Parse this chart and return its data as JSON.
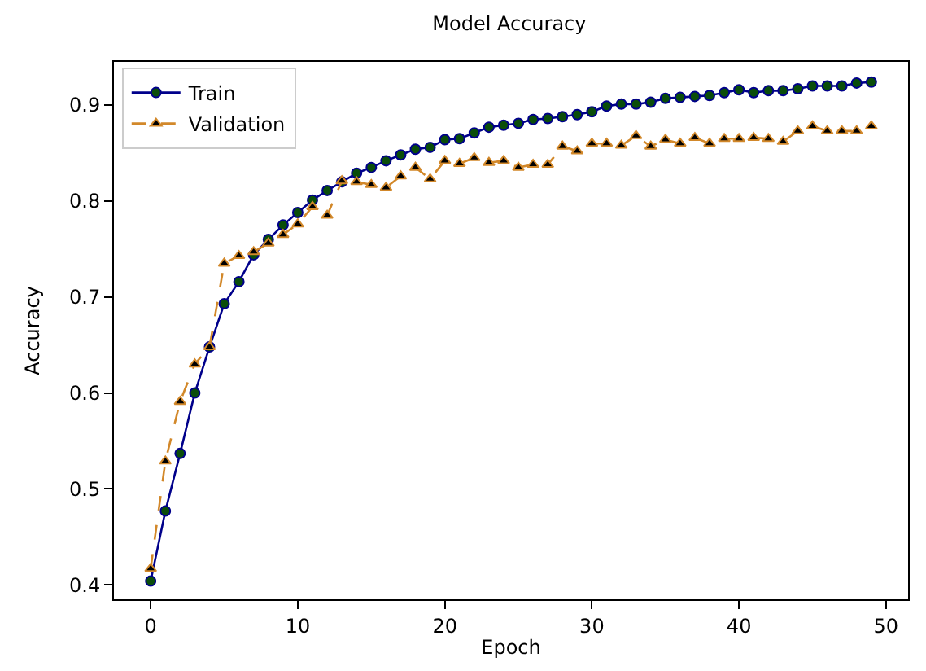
{
  "chart_data": {
    "type": "line",
    "title": "Model Accuracy",
    "xlabel": "Epoch",
    "ylabel": "Accuracy",
    "x": [
      0,
      1,
      2,
      3,
      4,
      5,
      6,
      7,
      8,
      9,
      10,
      11,
      12,
      13,
      14,
      15,
      16,
      17,
      18,
      19,
      20,
      21,
      22,
      23,
      24,
      25,
      26,
      27,
      28,
      29,
      30,
      31,
      32,
      33,
      34,
      35,
      36,
      37,
      38,
      39,
      40,
      41,
      42,
      43,
      44,
      45,
      46,
      47,
      48,
      49
    ],
    "series": [
      {
        "name": "Train",
        "color": "#00008b",
        "marker": "circle",
        "line_style": "solid",
        "values": [
          0.404,
          0.477,
          0.537,
          0.6,
          0.648,
          0.693,
          0.716,
          0.744,
          0.76,
          0.775,
          0.788,
          0.801,
          0.811,
          0.82,
          0.829,
          0.835,
          0.842,
          0.848,
          0.854,
          0.856,
          0.864,
          0.865,
          0.871,
          0.877,
          0.879,
          0.881,
          0.885,
          0.886,
          0.888,
          0.89,
          0.893,
          0.899,
          0.901,
          0.901,
          0.903,
          0.907,
          0.908,
          0.909,
          0.91,
          0.913,
          0.916,
          0.913,
          0.915,
          0.915,
          0.917,
          0.92,
          0.92,
          0.92,
          0.923,
          0.924
        ]
      },
      {
        "name": "Validation",
        "color": "#d2882a",
        "marker": "triangle",
        "line_style": "dashed",
        "values": [
          0.417,
          0.529,
          0.591,
          0.63,
          0.648,
          0.735,
          0.743,
          0.747,
          0.756,
          0.765,
          0.776,
          0.794,
          0.785,
          0.821,
          0.82,
          0.817,
          0.814,
          0.826,
          0.835,
          0.823,
          0.842,
          0.839,
          0.845,
          0.84,
          0.842,
          0.835,
          0.838,
          0.838,
          0.857,
          0.852,
          0.86,
          0.86,
          0.858,
          0.868,
          0.857,
          0.864,
          0.86,
          0.866,
          0.86,
          0.865,
          0.865,
          0.866,
          0.865,
          0.862,
          0.873,
          0.878,
          0.873,
          0.873,
          0.873,
          0.878
        ]
      }
    ],
    "xlim": [
      -2.5,
      51.5
    ],
    "xticks": [
      0,
      10,
      20,
      30,
      40,
      50
    ],
    "ylim": [
      0.385,
      0.945
    ],
    "yticks": [
      0.4,
      0.5,
      0.6,
      0.7,
      0.8,
      0.9
    ],
    "legend": "top left"
  }
}
